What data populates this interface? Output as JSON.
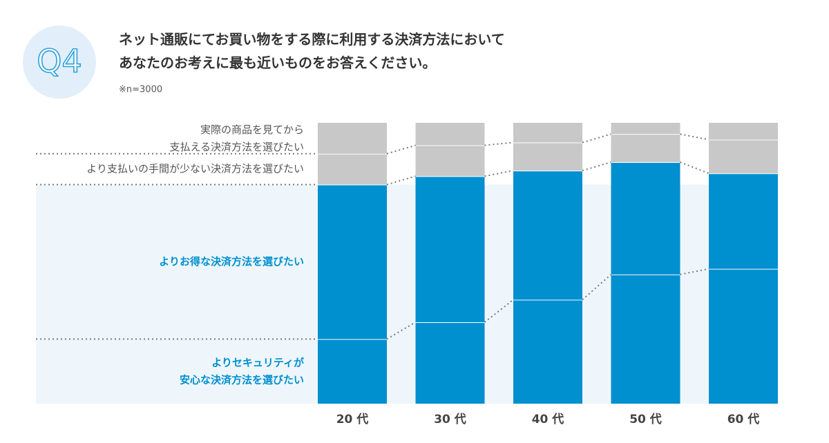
{
  "badge": "Q4",
  "chart_data": {
    "type": "stacked_bar",
    "title": "ネット通販にてお買い物をする際に利用する決済方法において\nあなたのお考えに最も近いものをお答えください。",
    "note": "※n=3000",
    "categories": [
      "20 代",
      "30 代",
      "40 代",
      "50 代",
      "60 代"
    ],
    "ylim": [
      0,
      100
    ],
    "series": [
      {
        "name": "よりセキュリティが\n安心な決済方法を選びたい",
        "color": "#008fcf",
        "values": [
          23,
          29,
          37,
          46,
          48
        ]
      },
      {
        "name": "よりお得な決済方法を選びたい",
        "color": "#008fcf",
        "values": [
          55,
          52,
          46,
          40,
          34
        ]
      },
      {
        "name": "より支払いの手間が少ない決済方法を選びたい",
        "color": "#c8c8c8",
        "values": [
          11,
          11,
          10,
          10,
          12
        ]
      },
      {
        "name": "実際の商品を見てから\n支払える決済方法を選びたい",
        "color": "#c8c8c8",
        "values": [
          11,
          8,
          7,
          4,
          6
        ]
      }
    ]
  }
}
